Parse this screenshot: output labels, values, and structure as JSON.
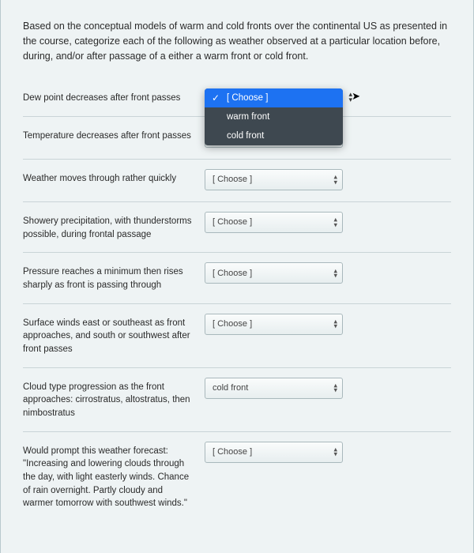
{
  "instructions": "Based on the conceptual models of warm and cold fronts over the continental US as presented in the course, categorize each of the following as weather observed at a particular location before, during, and/or after passage of a either a warm front or cold front.",
  "placeholder": "[ Choose ]",
  "options": {
    "choose": "[ Choose ]",
    "warm": "warm front",
    "cold": "cold front"
  },
  "questions": [
    {
      "label": "Dew point decreases after front passes",
      "value": "[ Choose ]",
      "open": true
    },
    {
      "label": "Temperature decreases after front passes",
      "value": "[ Choose ]",
      "open": false
    },
    {
      "label": "Weather moves through rather quickly",
      "value": "[ Choose ]",
      "open": false
    },
    {
      "label": "Showery precipitation, with thunderstorms possible, during frontal passage",
      "value": "[ Choose ]",
      "open": false
    },
    {
      "label": "Pressure reaches a minimum then rises sharply as front is passing through",
      "value": "[ Choose ]",
      "open": false
    },
    {
      "label": "Surface winds east or southeast as front approaches, and south or southwest after front passes",
      "value": "[ Choose ]",
      "open": false
    },
    {
      "label": "Cloud type progression as the front approaches: cirrostratus, altostratus, then nimbostratus",
      "value": "cold front",
      "open": false
    },
    {
      "label": "Would prompt this weather forecast: \"Increasing and lowering clouds through the day, with light easterly winds. Chance of rain overnight. Partly cloudy and warmer tomorrow with southwest winds.\"",
      "value": "[ Choose ]",
      "open": false
    }
  ]
}
